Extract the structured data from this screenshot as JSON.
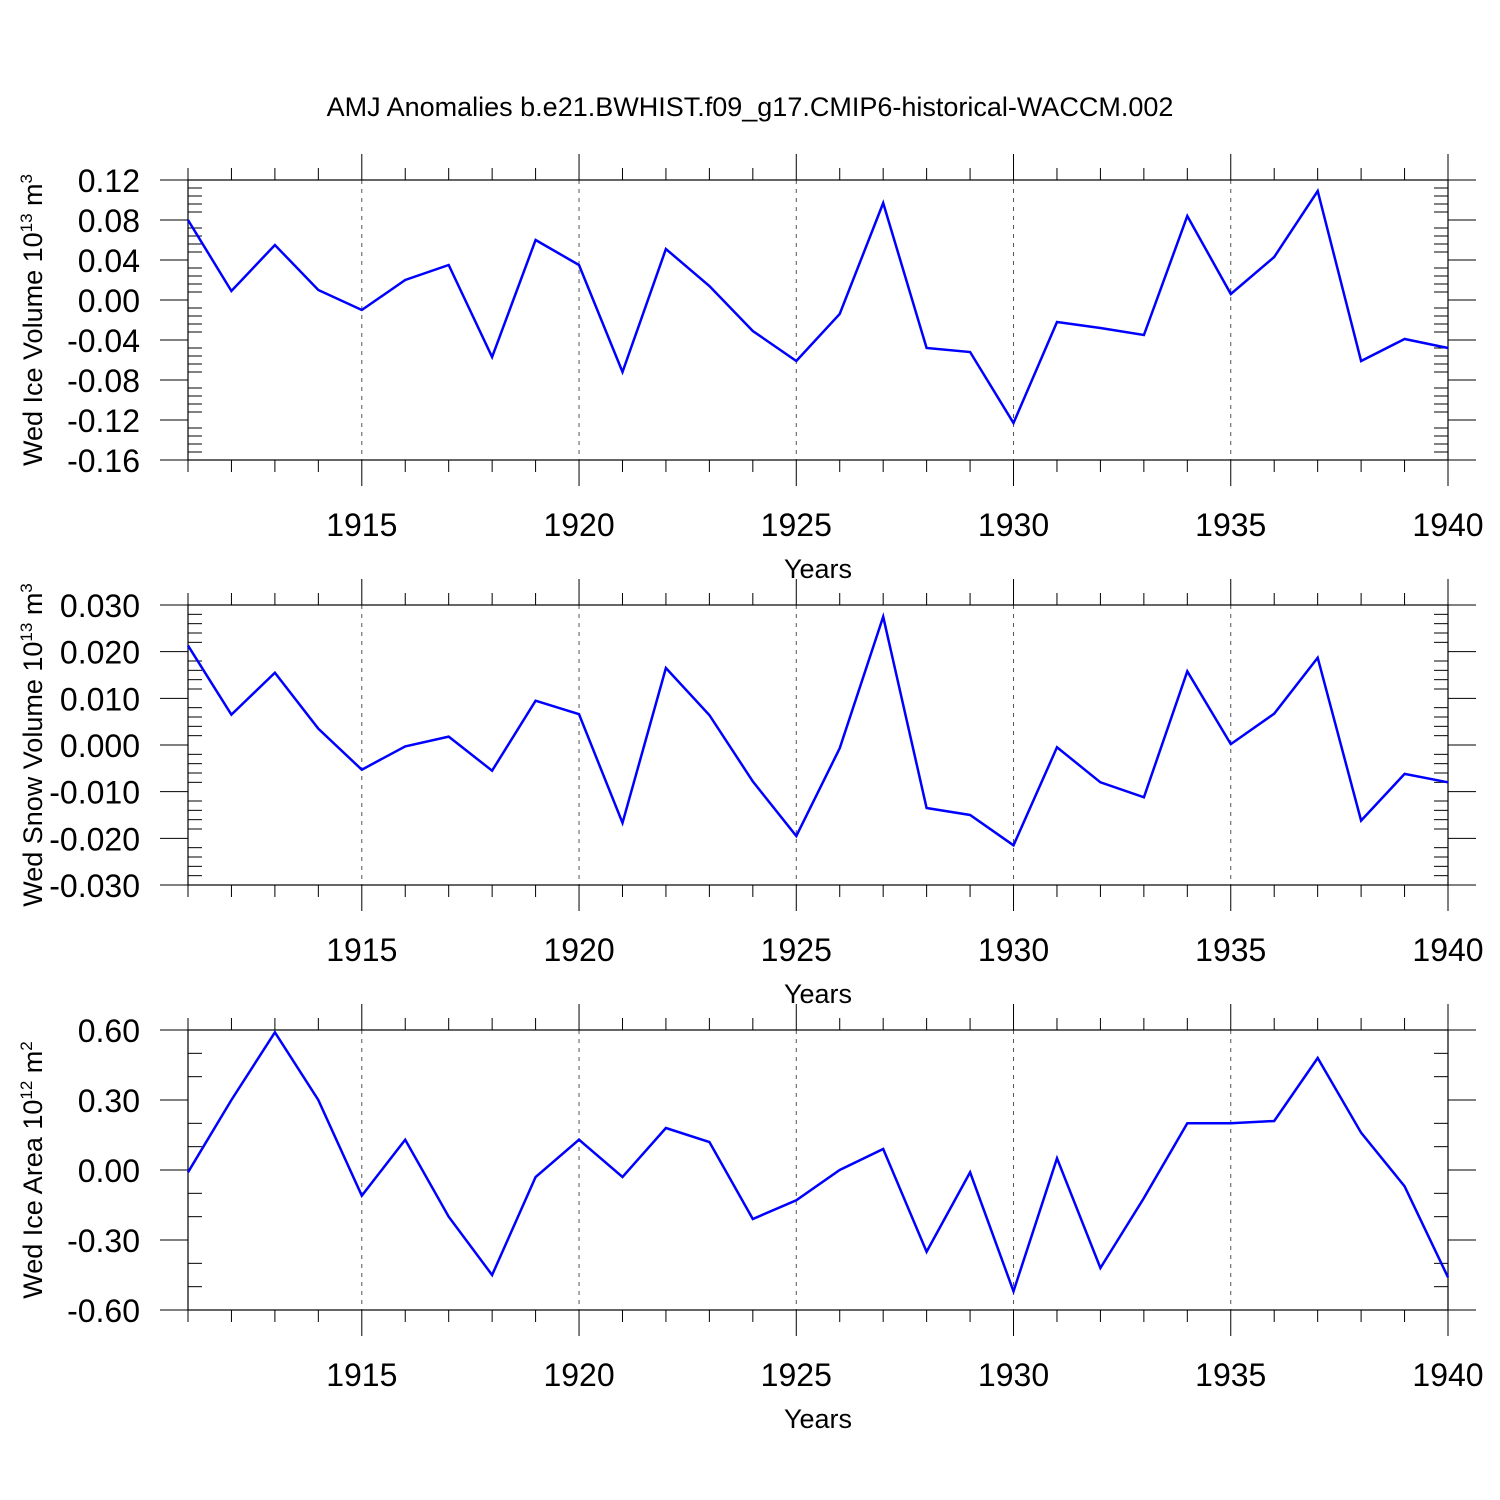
{
  "title": "AMJ Anomalies b.e21.BWHIST.f09_g17.CMIP6-historical-WACCM.002",
  "colors": {
    "line": "#0000ff",
    "axis": "#000000",
    "grid": "#555555"
  },
  "chart_data": [
    {
      "type": "line",
      "ylabel_main": "Wed Ice Volume 10",
      "ylabel_exp": "13",
      "ylabel_unit": " m",
      "ylabel_unit_exp": "3",
      "xlabel": "Years",
      "xlim": [
        1911,
        1940
      ],
      "ylim": [
        -0.16,
        0.12
      ],
      "yticks": [
        0.12,
        0.08,
        0.04,
        0.0,
        -0.04,
        -0.08,
        -0.12,
        -0.16
      ],
      "ytick_labels": [
        "0.12",
        "0.08",
        "0.04",
        "0.00",
        "-0.04",
        "-0.08",
        "-0.12",
        "-0.16"
      ],
      "yminor_step": 0.008,
      "xticks": [
        1915,
        1920,
        1925,
        1930,
        1935,
        1940
      ],
      "xtick_labels": [
        "1915",
        "1920",
        "1925",
        "1930",
        "1935",
        "1940"
      ],
      "x": [
        1911,
        1912,
        1913,
        1914,
        1915,
        1916,
        1917,
        1918,
        1919,
        1920,
        1921,
        1922,
        1923,
        1924,
        1925,
        1926,
        1927,
        1928,
        1929,
        1930,
        1931,
        1932,
        1933,
        1934,
        1935,
        1936,
        1937,
        1938,
        1939,
        1940
      ],
      "values": [
        0.08,
        0.009,
        0.055,
        0.01,
        -0.01,
        0.02,
        0.035,
        -0.057,
        0.06,
        0.035,
        -0.072,
        0.051,
        0.014,
        -0.031,
        -0.061,
        -0.014,
        0.097,
        -0.048,
        -0.052,
        -0.123,
        -0.022,
        -0.028,
        -0.035,
        0.084,
        0.006,
        0.043,
        0.109,
        -0.061,
        -0.039,
        -0.048
      ]
    },
    {
      "type": "line",
      "ylabel_main": "Wed Snow Volume 10",
      "ylabel_exp": "13",
      "ylabel_unit": " m",
      "ylabel_unit_exp": "3",
      "xlabel": "Years",
      "xlim": [
        1911,
        1940
      ],
      "ylim": [
        -0.03,
        0.03
      ],
      "yticks": [
        0.03,
        0.02,
        0.01,
        0.0,
        -0.01,
        -0.02,
        -0.03
      ],
      "ytick_labels": [
        "0.030",
        "0.020",
        "0.010",
        "0.000",
        "-0.010",
        "-0.020",
        "-0.030"
      ],
      "yminor_step": 0.002,
      "xticks": [
        1915,
        1920,
        1925,
        1930,
        1935,
        1940
      ],
      "xtick_labels": [
        "1915",
        "1920",
        "1925",
        "1930",
        "1935",
        "1940"
      ],
      "x": [
        1911,
        1912,
        1913,
        1914,
        1915,
        1916,
        1917,
        1918,
        1919,
        1920,
        1921,
        1922,
        1923,
        1924,
        1925,
        1926,
        1927,
        1928,
        1929,
        1930,
        1931,
        1932,
        1933,
        1934,
        1935,
        1936,
        1937,
        1938,
        1939,
        1940
      ],
      "values": [
        0.0213,
        0.0065,
        0.0155,
        0.0035,
        -0.0053,
        -0.0003,
        0.0018,
        -0.0055,
        0.0095,
        0.0066,
        -0.0167,
        0.0165,
        0.0064,
        -0.0078,
        -0.0195,
        -0.0007,
        0.0275,
        -0.0135,
        -0.015,
        -0.0215,
        -0.0005,
        -0.008,
        -0.0112,
        0.0158,
        0.0002,
        0.0067,
        0.0187,
        -0.0162,
        -0.0062,
        -0.008
      ]
    },
    {
      "type": "line",
      "ylabel_main": "Wed Ice Area 10",
      "ylabel_exp": "12",
      "ylabel_unit": " m",
      "ylabel_unit_exp": "2",
      "xlabel": "Years",
      "xlim": [
        1911,
        1940
      ],
      "ylim": [
        -0.6,
        0.6
      ],
      "yticks": [
        0.6,
        0.3,
        0.0,
        -0.3,
        -0.6
      ],
      "ytick_labels": [
        "0.60",
        "0.30",
        "0.00",
        "-0.30",
        "-0.60"
      ],
      "yminor_step": 0.1,
      "xticks": [
        1915,
        1920,
        1925,
        1930,
        1935,
        1940
      ],
      "xtick_labels": [
        "1915",
        "1920",
        "1925",
        "1930",
        "1935",
        "1940"
      ],
      "x": [
        1911,
        1912,
        1913,
        1914,
        1915,
        1916,
        1917,
        1918,
        1919,
        1920,
        1921,
        1922,
        1923,
        1924,
        1925,
        1926,
        1927,
        1928,
        1929,
        1930,
        1931,
        1932,
        1933,
        1934,
        1935,
        1936,
        1937,
        1938,
        1939,
        1940
      ],
      "values": [
        -0.01,
        0.3,
        0.59,
        0.3,
        -0.11,
        0.13,
        -0.2,
        -0.45,
        -0.03,
        0.13,
        -0.03,
        0.18,
        0.12,
        -0.21,
        -0.13,
        0.0,
        0.09,
        -0.35,
        -0.01,
        -0.52,
        0.05,
        -0.42,
        -0.12,
        0.2,
        0.2,
        0.21,
        0.48,
        0.16,
        -0.07,
        -0.46
      ]
    }
  ]
}
